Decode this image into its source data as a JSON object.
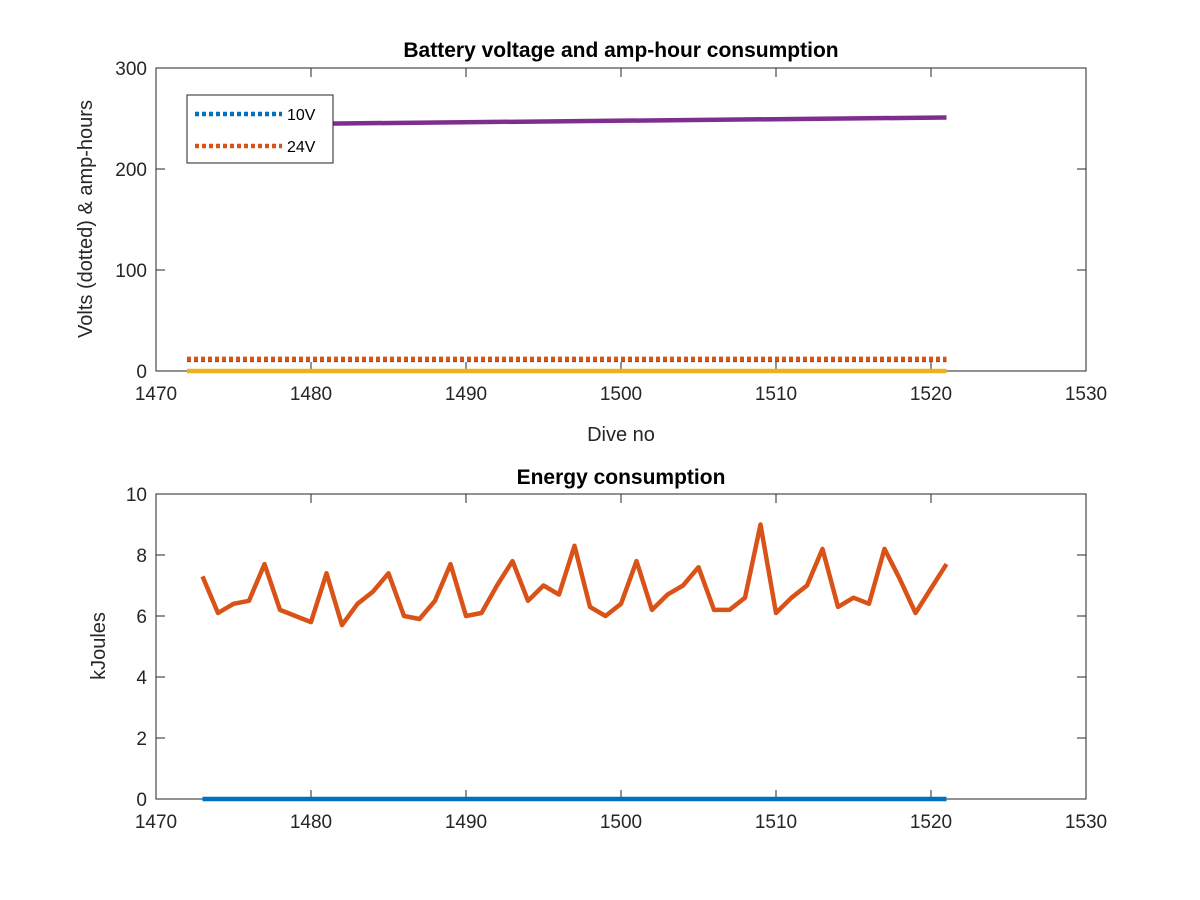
{
  "window": {
    "background": "#ffffff"
  },
  "colors": {
    "axis": "#262626",
    "series_blue": "#0072BD",
    "series_orange": "#D95319",
    "series_yellow": "#EDB120",
    "series_purple": "#7E2F8E"
  },
  "chart_data": [
    {
      "type": "line",
      "title": "Battery voltage and amp-hour consumption",
      "xlabel": "Dive no",
      "ylabel": "Volts (dotted) & amp-hours",
      "xlim": [
        1470,
        1530
      ],
      "ylim": [
        0,
        300
      ],
      "xticks": [
        "1470",
        "1480",
        "1490",
        "1500",
        "1510",
        "1520",
        "1530"
      ],
      "yticks": [
        "0",
        "100",
        "200",
        "300"
      ],
      "grid": false,
      "legend_position": "top-left",
      "series": [
        {
          "name": "10V",
          "style": "dotted",
          "color": "#0072BD",
          "x": [
            1472,
            1521
          ],
          "y": [
            11,
            11
          ]
        },
        {
          "name": "24V",
          "style": "dotted",
          "color": "#D95319",
          "x": [
            1472,
            1521
          ],
          "y": [
            12,
            12
          ]
        },
        {
          "style": "solid",
          "color": "#EDB120",
          "x": [
            1472,
            1521
          ],
          "y": [
            0,
            0
          ]
        },
        {
          "style": "solid",
          "color": "#7E2F8E",
          "x": [
            1481,
            1521
          ],
          "y": [
            245,
            251
          ]
        }
      ]
    },
    {
      "type": "line",
      "title": "Energy consumption",
      "xlabel": "",
      "ylabel": "kJoules",
      "xlim": [
        1470,
        1530
      ],
      "ylim": [
        0,
        10
      ],
      "xticks": [
        "1470",
        "1480",
        "1490",
        "1500",
        "1510",
        "1520",
        "1530"
      ],
      "yticks": [
        "0",
        "2",
        "4",
        "6",
        "8",
        "10"
      ],
      "grid": false,
      "series": [
        {
          "style": "solid",
          "color": "#0072BD",
          "x": [
            1473,
            1521
          ],
          "y": [
            0,
            0
          ]
        },
        {
          "style": "solid",
          "color": "#D95319",
          "x": [
            1473,
            1474,
            1475,
            1476,
            1477,
            1478,
            1479,
            1480,
            1481,
            1482,
            1483,
            1484,
            1485,
            1486,
            1487,
            1488,
            1489,
            1490,
            1491,
            1492,
            1493,
            1494,
            1495,
            1496,
            1497,
            1498,
            1499,
            1500,
            1501,
            1502,
            1503,
            1504,
            1505,
            1506,
            1507,
            1508,
            1509,
            1510,
            1511,
            1512,
            1513,
            1514,
            1515,
            1516,
            1517,
            1518,
            1519,
            1520,
            1521
          ],
          "y": [
            7.3,
            6.1,
            6.4,
            6.5,
            7.7,
            6.2,
            6.0,
            5.8,
            7.4,
            5.7,
            6.4,
            6.8,
            7.4,
            6.0,
            5.9,
            6.5,
            7.7,
            6.0,
            6.1,
            7.0,
            7.8,
            6.5,
            7.0,
            6.7,
            8.3,
            6.3,
            6.0,
            6.4,
            7.8,
            6.2,
            6.7,
            7.0,
            7.6,
            6.2,
            6.2,
            6.6,
            9.0,
            6.1,
            6.6,
            7.0,
            8.2,
            6.3,
            6.6,
            6.4,
            8.2,
            7.2,
            6.1,
            6.9,
            7.7
          ]
        }
      ]
    }
  ]
}
